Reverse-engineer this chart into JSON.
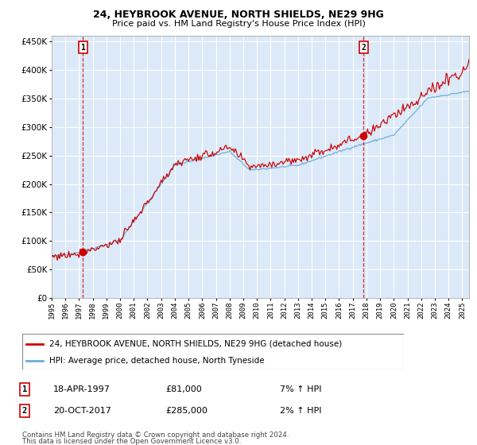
{
  "title": "24, HEYBROOK AVENUE, NORTH SHIELDS, NE29 9HG",
  "subtitle": "Price paid vs. HM Land Registry's House Price Index (HPI)",
  "legend_label_red": "24, HEYBROOK AVENUE, NORTH SHIELDS, NE29 9HG (detached house)",
  "legend_label_blue": "HPI: Average price, detached house, North Tyneside",
  "annotation1_label": "1",
  "annotation1_date": "18-APR-1997",
  "annotation1_price": "£81,000",
  "annotation1_hpi": "7% ↑ HPI",
  "annotation1_year": 1997.29,
  "annotation1_value": 81000,
  "annotation2_label": "2",
  "annotation2_date": "20-OCT-2017",
  "annotation2_price": "£285,000",
  "annotation2_hpi": "2% ↑ HPI",
  "annotation2_year": 2017.8,
  "annotation2_value": 285000,
  "start_year": 1995.0,
  "end_year": 2025.5,
  "ymin": 0,
  "ymax": 460000,
  "yticks": [
    0,
    50000,
    100000,
    150000,
    200000,
    250000,
    300000,
    350000,
    400000,
    450000
  ],
  "plot_background": "#dce9f8",
  "grid_color": "#ffffff",
  "red_color": "#cc0000",
  "blue_color": "#6aaed6",
  "footnote_line1": "Contains HM Land Registry data © Crown copyright and database right 2024.",
  "footnote_line2": "This data is licensed under the Open Government Licence v3.0."
}
